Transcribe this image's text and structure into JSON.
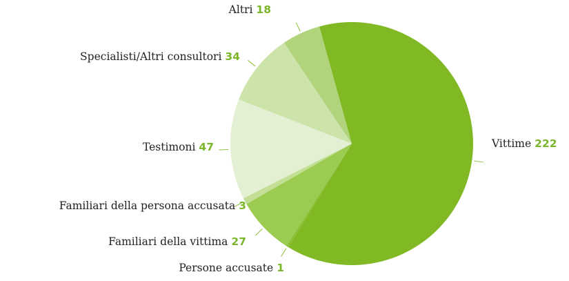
{
  "chart_data": {
    "type": "pie",
    "categories": [
      "Vittime",
      "Persone accusate",
      "Familiari della vittima",
      "Familiari della persona accusata",
      "Testimoni",
      "Specialisti/Altri consultori",
      "Altri"
    ],
    "values": [
      222,
      1,
      27,
      3,
      47,
      34,
      18
    ],
    "colors": [
      "#80b923",
      "#8abf33",
      "#9ccb52",
      "#c2df95",
      "#e4f0d3",
      "#cce4a9",
      "#b0d37c"
    ]
  }
}
